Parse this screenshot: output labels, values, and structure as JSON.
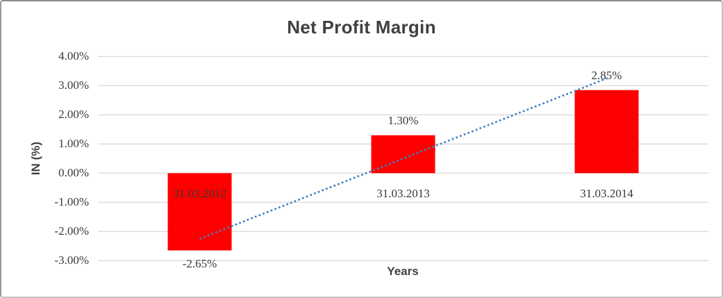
{
  "chart": {
    "title": "Net Profit Margin",
    "ylabel": "IN (%)",
    "xlabel": "Years"
  },
  "chart_data": {
    "type": "bar",
    "title": "Net Profit Margin",
    "xlabel": "Years",
    "ylabel": "IN (%)",
    "categories": [
      "31.03.2012",
      "31.03.2013",
      "31.03.2014"
    ],
    "values": [
      -2.65,
      1.3,
      2.85
    ],
    "value_labels": [
      "-2.65%",
      "1.30%",
      "2.85%"
    ],
    "ylim": [
      -3,
      4
    ],
    "ytick_step": 1,
    "ytick_labels_top_to_bottom": [
      "4.00%",
      "3.00%",
      "2.00%",
      "1.00%",
      "0.00%",
      "-1.00%",
      "-2.00%",
      "-3.00%"
    ],
    "grid": true,
    "legend": "none",
    "colors": {
      "bar": "#ff0000",
      "trendline": "#4081c2",
      "gridline": "#d9d9d9",
      "text": "#404040",
      "background": "#ffffff"
    },
    "trendline": {
      "type": "linear",
      "style": "dotted",
      "start_value": -2.25,
      "end_value": 3.25
    }
  }
}
